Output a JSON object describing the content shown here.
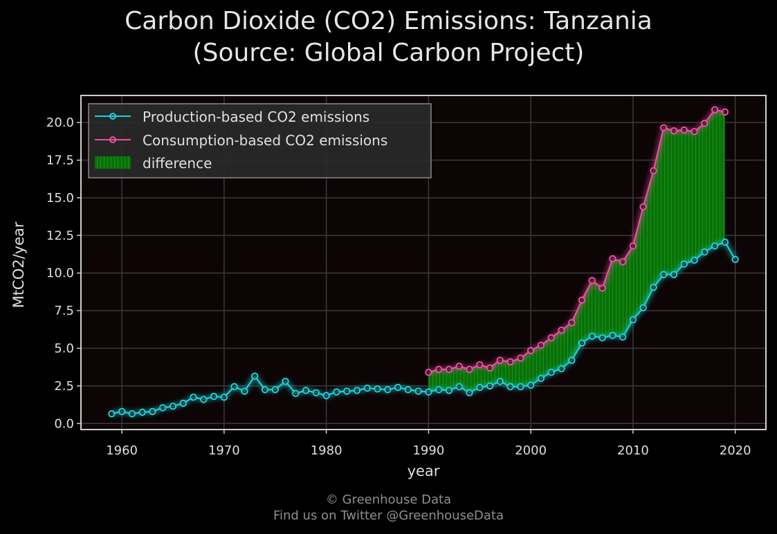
{
  "title_line1": "Carbon Dioxide (CO2) Emissions: Tanzania",
  "title_line2": "(Source: Global Carbon Project)",
  "footer_line1": "© Greenhouse Data",
  "footer_line2": "Find us on Twitter @GreenhouseData",
  "colors": {
    "background": "#000000",
    "plot_background": "#0d0405",
    "production": "#19d3da",
    "consumption": "#ec4fa3",
    "difference": "#0b8a0b",
    "grid": "#3a3a3a",
    "axes_frame": "#d0d0d0"
  },
  "chart_data": {
    "type": "line",
    "xlabel": "year",
    "ylabel": "MtCO2/year",
    "xlim": [
      1956,
      2023
    ],
    "ylim": [
      -0.4,
      21.8
    ],
    "xticks": [
      1960,
      1970,
      1980,
      1990,
      2000,
      2010,
      2020
    ],
    "yticks": [
      0.0,
      2.5,
      5.0,
      7.5,
      10.0,
      12.5,
      15.0,
      17.5,
      20.0
    ],
    "grid": true,
    "legend_position": "top-left",
    "legend": [
      "Production-based CO2 emissions",
      "Consumption-based CO2 emissions",
      "difference"
    ],
    "series": [
      {
        "name": "Production-based CO2 emissions",
        "x": [
          1959,
          1960,
          1961,
          1962,
          1963,
          1964,
          1965,
          1966,
          1967,
          1968,
          1969,
          1970,
          1971,
          1972,
          1973,
          1974,
          1975,
          1976,
          1977,
          1978,
          1979,
          1980,
          1981,
          1982,
          1983,
          1984,
          1985,
          1986,
          1987,
          1988,
          1989,
          1990,
          1991,
          1992,
          1993,
          1994,
          1995,
          1996,
          1997,
          1998,
          1999,
          2000,
          2001,
          2002,
          2003,
          2004,
          2005,
          2006,
          2007,
          2008,
          2009,
          2010,
          2011,
          2012,
          2013,
          2014,
          2015,
          2016,
          2017,
          2018,
          2019,
          2020
        ],
        "values": [
          0.65,
          0.8,
          0.65,
          0.75,
          0.8,
          1.05,
          1.15,
          1.35,
          1.75,
          1.6,
          1.8,
          1.75,
          2.45,
          2.15,
          3.15,
          2.25,
          2.25,
          2.8,
          2.0,
          2.2,
          2.05,
          1.85,
          2.1,
          2.15,
          2.2,
          2.35,
          2.3,
          2.25,
          2.4,
          2.25,
          2.15,
          2.1,
          2.25,
          2.2,
          2.45,
          2.05,
          2.4,
          2.5,
          2.8,
          2.45,
          2.45,
          2.55,
          3.0,
          3.4,
          3.65,
          4.2,
          5.35,
          5.8,
          5.7,
          5.85,
          5.75,
          6.9,
          7.7,
          9.05,
          9.9,
          9.9,
          10.6,
          10.85,
          11.4,
          11.8,
          12.05,
          10.9
        ]
      },
      {
        "name": "Consumption-based CO2 emissions",
        "x": [
          1990,
          1991,
          1992,
          1993,
          1994,
          1995,
          1996,
          1997,
          1998,
          1999,
          2000,
          2001,
          2002,
          2003,
          2004,
          2005,
          2006,
          2007,
          2008,
          2009,
          2010,
          2011,
          2012,
          2013,
          2014,
          2015,
          2016,
          2017,
          2018,
          2019
        ],
        "values": [
          3.4,
          3.6,
          3.6,
          3.8,
          3.6,
          3.9,
          3.7,
          4.2,
          4.1,
          4.35,
          4.85,
          5.2,
          5.7,
          6.2,
          6.7,
          8.2,
          9.5,
          9.0,
          10.95,
          10.75,
          11.8,
          14.4,
          16.8,
          19.65,
          19.45,
          19.5,
          19.4,
          19.95,
          20.85,
          20.7
        ]
      }
    ]
  }
}
